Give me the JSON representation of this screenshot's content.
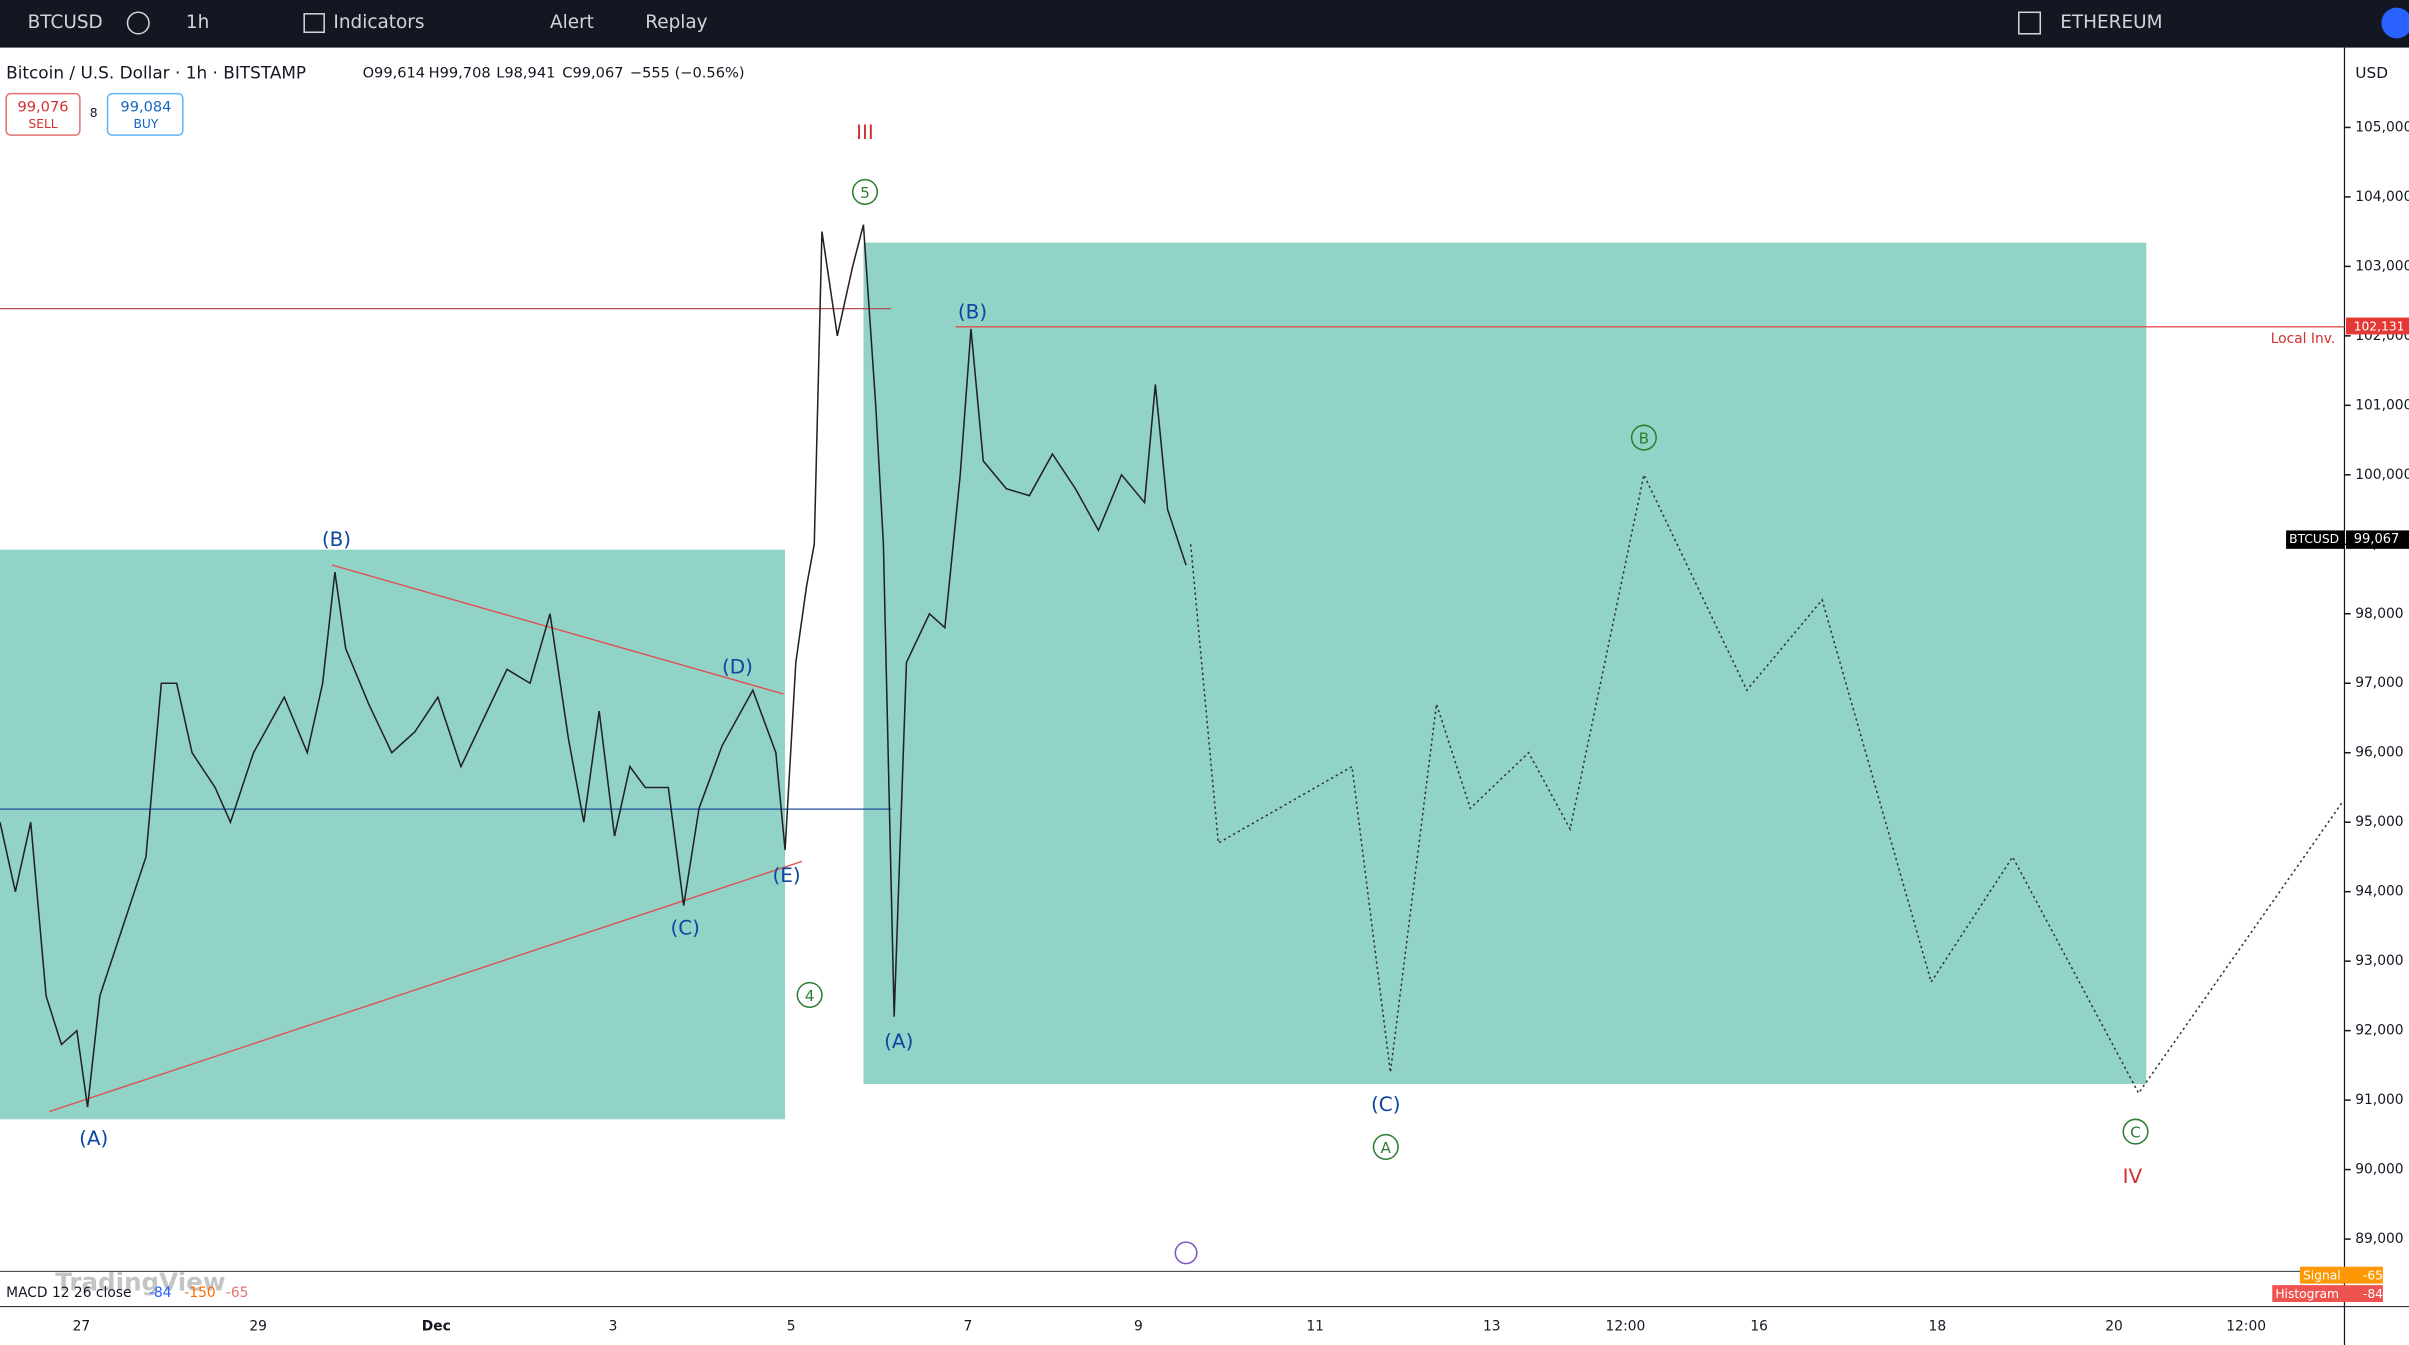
{
  "toolbar": {
    "symbol": "BTCUSD",
    "interval": "1h",
    "indicators": "Indicators",
    "alert": "Alert",
    "replay": "Replay",
    "layout": "ETHEREUM"
  },
  "legend": {
    "title": "Bitcoin / U.S. Dollar · 1h · BITSTAMP",
    "open": "O99,614",
    "high": "H99,708",
    "low": "L98,941",
    "close": "C99,067",
    "change": "−555 (−0.56%)"
  },
  "trade": {
    "sell_price": "99,076",
    "sell": "SELL",
    "spread": "8",
    "buy_price": "99,084",
    "buy": "BUY"
  },
  "price_axis": {
    "currency": "USD",
    "ticks": [
      {
        "value": 105000,
        "label": "105,000"
      },
      {
        "value": 104000,
        "label": "104,000"
      },
      {
        "value": 103000,
        "label": "103,000"
      },
      {
        "value": 102000,
        "label": "102,000"
      },
      {
        "value": 101000,
        "label": "101,000"
      },
      {
        "value": 100000,
        "label": "100,000"
      },
      {
        "value": 99000,
        "label": "99,000"
      },
      {
        "value": 98000,
        "label": "98,000"
      },
      {
        "value": 97000,
        "label": "97,000"
      },
      {
        "value": 96000,
        "label": "96,000"
      },
      {
        "value": 95000,
        "label": "95,000"
      },
      {
        "value": 94000,
        "label": "94,000"
      },
      {
        "value": 93000,
        "label": "93,000"
      },
      {
        "value": 92000,
        "label": "92,000"
      },
      {
        "value": 91000,
        "label": "91,000"
      },
      {
        "value": 90000,
        "label": "90,000"
      },
      {
        "value": 89000,
        "label": "89,000"
      }
    ],
    "last_symbol": "BTCUSD",
    "last_price": {
      "value": 99067,
      "label": "99,067"
    }
  },
  "level": {
    "name": "Local Inv.",
    "value": 102131,
    "label": "102,131"
  },
  "time_axis": [
    "27",
    "29",
    "Dec",
    "3",
    "5",
    "7",
    "9",
    "11",
    "13",
    "12:00",
    "16",
    "18",
    "20",
    "12:00"
  ],
  "price_series": [
    95000,
    94000,
    95000,
    92500,
    91800,
    92000,
    90900,
    92500,
    93500,
    94500,
    97000,
    97000,
    96000,
    95500,
    95000,
    96000,
    96800,
    96000,
    97000,
    98600,
    97500,
    96700,
    96000,
    96300,
    96800,
    95800,
    96500,
    97200,
    97000,
    98000,
    96200,
    95000,
    96600,
    94800,
    95800,
    95500,
    95500,
    93800,
    95200,
    96100,
    96900,
    96000,
    94600,
    97300,
    98400,
    99000,
    103500,
    102000,
    103000,
    103600,
    101000,
    99000,
    92200,
    97300,
    98000,
    97800,
    100000,
    102100,
    100200,
    99800,
    99700,
    100300,
    99800,
    99200,
    100000,
    99600,
    101300,
    99500,
    98700
  ],
  "projection": [
    99000,
    94700,
    95800,
    91400,
    96700,
    95200,
    96000,
    94900,
    100000,
    96900,
    98200,
    92700,
    94500,
    91100,
    95300
  ],
  "wave_labels": [
    {
      "text": "III",
      "color": "#d32f2f"
    },
    {
      "text": "5",
      "color": "#2e7d32"
    },
    {
      "text": "(B)",
      "color": "#0d47a1"
    },
    {
      "text": "(B)",
      "color": "#0d47a1"
    },
    {
      "text": "(D)",
      "color": "#0d47a1"
    },
    {
      "text": "(E)",
      "color": "#0d47a1"
    },
    {
      "text": "(C)",
      "color": "#0d47a1"
    },
    {
      "text": "4",
      "color": "#2e7d32"
    },
    {
      "text": "(A)",
      "color": "#0d47a1"
    },
    {
      "text": "(A)",
      "color": "#0d47a1"
    },
    {
      "text": "B",
      "color": "#2e7d32"
    },
    {
      "text": "(C)",
      "color": "#0d47a1"
    },
    {
      "text": "A",
      "color": "#2e7d32"
    },
    {
      "text": "C",
      "color": "#2e7d32"
    },
    {
      "text": "IV",
      "color": "#d32f2f"
    }
  ],
  "macd": {
    "label": "MACD 12 26 close",
    "values": [
      "-84",
      "-150",
      "-65"
    ],
    "signal": "Signal",
    "signal_value": "-65",
    "histogram": "Histogram",
    "histogram_value": "-84"
  },
  "logo": "TradingView"
}
